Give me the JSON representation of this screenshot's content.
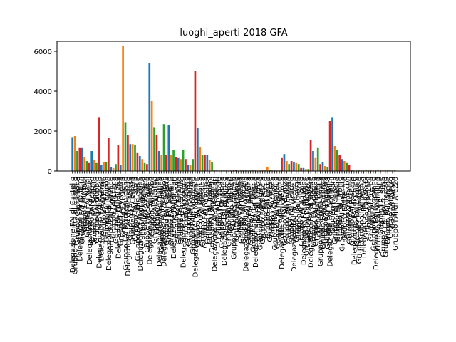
{
  "chart_data": {
    "type": "bar",
    "title": "luoghi_aperti  2018  GFA",
    "xlabel": "",
    "ylabel": "",
    "ylim": [
      0,
      6500
    ],
    "yticks": [
      0,
      2000,
      4000,
      6000
    ],
    "grid": false,
    "legend": "none",
    "colors": [
      "#1f77b4",
      "#ff7f0e",
      "#2ca02c",
      "#d62728"
    ],
    "values": [
      1700,
      1750,
      1000,
      1150,
      1150,
      700,
      500,
      400,
      1000,
      550,
      400,
      2700,
      300,
      450,
      450,
      1650,
      200,
      150,
      350,
      1300,
      300,
      6250,
      2450,
      1800,
      1350,
      1350,
      1300,
      900,
      750,
      600,
      400,
      350,
      5400,
      3500,
      2200,
      1800,
      1000,
      800,
      2350,
      800,
      2300,
      800,
      1050,
      700,
      650,
      600,
      1050,
      600,
      300,
      300,
      600,
      5000,
      2150,
      1200,
      800,
      800,
      800,
      550,
      450,
      40,
      30,
      30,
      30,
      30,
      30,
      30,
      30,
      40,
      40,
      30,
      30,
      30,
      30,
      30,
      30,
      30,
      30,
      30,
      30,
      30,
      30,
      200,
      40,
      30,
      30,
      30,
      30,
      650,
      850,
      500,
      350,
      500,
      450,
      400,
      350,
      150,
      150,
      100,
      100,
      1550,
      1000,
      650,
      1150,
      350,
      450,
      250,
      200,
      2500,
      2700,
      1250,
      1050,
      800,
      600,
      500,
      400,
      300,
      40,
      30,
      30,
      30,
      30,
      30,
      40,
      30,
      30,
      30,
      30,
      30,
      30,
      30,
      30,
      30,
      30,
      30,
      30
    ],
    "categories": [
      "Delegazione FAI di Castello",
      "Gruppo FAI Città di Castello",
      "Gruppo Castiglione",
      "Delegazione FAI di Terni",
      "Gruppo FAI Orvieto",
      "Gruppo FAI Todi",
      "Gruppo FAI Narni",
      "Delegazione FAI di Assisi",
      "Gruppo FAI Foligno",
      "Gruppo FAI Spoleto",
      "Gruppo FAI Gubbio",
      "Delegazione FAI di Arezzo",
      "Delegazione FAI Firenze",
      "Gruppo FAI Prato",
      "Gruppo FAI Empoli",
      "Delegazione FAI di Livorno",
      "Gruppo FAI Piombino",
      "Gruppo FAI Lucca",
      "Gruppo FAI Versilia",
      "Delegazione FAI di Pisa",
      "Gruppo FAI Volterra",
      "Gruppo FAI Siena",
      "Gruppo FAI Montepulciano",
      "Delegazione FAI di Grosseto",
      "Gruppo FAI Massa",
      "Gruppo FAI Carrara",
      "Gruppo FAI Pistoia",
      "Gruppo FAI Valdinievole",
      "Delegazione FAI di Ancona",
      "Gruppo FAI Fabriano",
      "Gruppo FAI Jesi",
      "Gruppo FAI Senigallia",
      "Delegazione FAI di Roma",
      "Gruppo FAI Tivoli",
      "Gruppo FAI Viterbo",
      "Gruppo FAI Rieti",
      "Delegazione FAI di Latina",
      "Gruppo FAI Frosinone",
      "Delegazione FAI di Napoli",
      "Gruppo FAI Caserta",
      "Gruppo FAI Salerno",
      "Gruppo FAI Avellino",
      "Delegazione FAI di Bari",
      "Gruppo FAI Lecce",
      "Gruppo FAI Taranto",
      "Gruppo FAI Brindisi",
      "Delegazione FAI di Foggia",
      "Gruppo FAI Matera",
      "Gruppo FAI Potenza",
      "Gruppo FAI Cosenza",
      "Gruppo FAI Catanzaro",
      "Delegazione FAI di Monreale",
      "Gruppo FAI Palermo",
      "Gruppo FAI Catania",
      "Gruppo FAI Messina",
      "Gruppo FAI Siracusa",
      "Gruppo FAI Ragusa",
      "Gruppo FAI Trapani",
      "Gruppo FAI Agrigento",
      "Delegazione FAI di Cagliari",
      "Gruppo FAI Sassari",
      "Gruppo FAI Nuoro",
      "Gruppo FAI Oristano",
      "Delegazione FAI di Torino",
      "Gruppo FAI Ivrea",
      "Gruppo FAI Pinerolo",
      "Gruppo FAI Asti",
      "Gruppo FAI Alessandria",
      "Gruppo FAI Cuneo",
      "Gruppo FAI Biella",
      "Gruppo FAI Novara",
      "Gruppo FAI Vercelli",
      "Delegazione FAI di Genova",
      "Gruppo FAI Savona",
      "Gruppo FAI Imperia",
      "Gruppo FAI La Spezia",
      "Delegazione FAI di Milano",
      "Gruppo FAI Monza",
      "Gruppo FAI Bergamo",
      "Gruppo FAI Brescia",
      "Gruppo FAI Como",
      "Gruppo FAI Lecco",
      "Gruppo FAI Varese",
      "Gruppo FAI Pavia",
      "Gruppo FAI Cremona",
      "Gruppo FAI Mantova",
      "Gruppo FAI Sondrio",
      "Delegazione FAI di Verona",
      "Gruppo FAI Vicenza",
      "Gruppo FAI Padova",
      "Gruppo FAI Treviso",
      "Gruppo FAI Belluno",
      "Delegazione FAI di Venezia",
      "Gruppo FAI Rovigo",
      "Gruppo FAI Trento",
      "Gruppo FAI Bolzano",
      "Delegazione FAI di Udine",
      "Gruppo FAI Pordenone",
      "Gruppo FAI Gorizia",
      "Delegazione FAI di Trieste",
      "Gruppo FAI Bologna",
      "Gruppo FAI Modena",
      "Gruppo FAI Parma",
      "Gruppo FAI Reggio Emilia",
      "Gruppo FAI Piacenza",
      "Gruppo FAI Ferrara",
      "Gruppo FAI Ravenna",
      "Delegazione FAI di Rimini",
      "Gruppo FAI Forlì",
      "Gruppo FAI Cesena",
      "Gruppo FAI Pesaro",
      "Gruppo FAI Urbino",
      "Gruppo FAI Macerata",
      "Gruppo FAI Fermo",
      "Gruppo FAI Ascoli",
      "Gruppo FAI Teramo",
      "Gruppo FAI Pescara",
      "Delegazione FAI di Chieti",
      "Gruppo FAI L'Aquila",
      "Gruppo FAI Campobasso",
      "Gruppo FAI Isernia",
      "Delegazione FAI Castel",
      "Gruppo FAI Aosta",
      "Gruppo FAI Lodi",
      "Gruppo FAI Crema",
      "Gruppo FAI Vigevano",
      "Delegazione FAI Lomellina",
      "Gruppo FAI Valtellina",
      "Gruppo FAI Valle",
      "Gruppo FAI Val di Susa",
      "Gruppo FAI Monferrato",
      "Gruppo FAI Langhe",
      "Gruppo FAI Roero",
      "Gruppo FAI Val",
      "Gruppo FAI di Arezzo"
    ]
  }
}
